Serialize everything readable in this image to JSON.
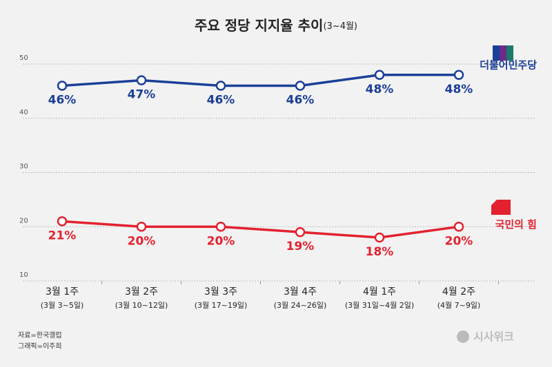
{
  "chart_data": {
    "type": "line",
    "title": "주요 정당 지지율 추이",
    "title_note": "(3~4월)",
    "categories": [
      "3월 1주",
      "3월 2주",
      "3월 3주",
      "3월 4주",
      "4월 1주",
      "4월 2주"
    ],
    "category_dates": [
      "(3월 3~5일)",
      "(3월 10~12일)",
      "(3월 17~19일)",
      "(3월 24~26일)",
      "(3월 31일~4월 2일)",
      "(4월 7~9일)"
    ],
    "series": [
      {
        "name": "더불어민주당",
        "color": "#1b3f98",
        "values": [
          46,
          47,
          46,
          46,
          48,
          48
        ],
        "value_labels": [
          "46%",
          "47%",
          "46%",
          "46%",
          "48%",
          "48%"
        ]
      },
      {
        "name": "국민의 힘",
        "color": "#e3212f",
        "values": [
          21,
          20,
          20,
          19,
          18,
          20
        ],
        "value_labels": [
          "21%",
          "20%",
          "20%",
          "19%",
          "18%",
          "20%"
        ]
      }
    ],
    "ylim": [
      10,
      50
    ],
    "yticks": [
      10,
      20,
      30,
      40,
      50
    ],
    "grid": true,
    "source": "자료=한국갤럽",
    "credit": "그래픽=이주희",
    "watermark": "시사위크"
  }
}
